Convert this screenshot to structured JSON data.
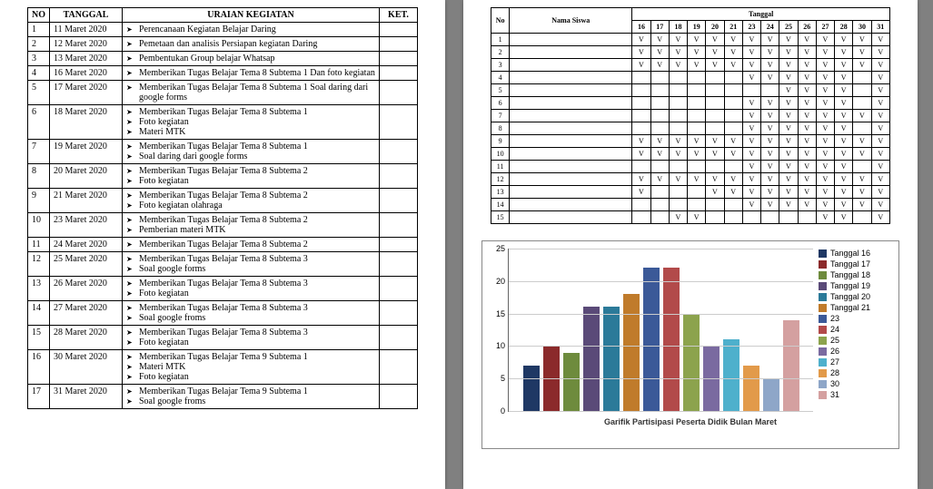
{
  "left_table": {
    "headers": {
      "no": "NO",
      "tanggal": "TANGGAL",
      "uraian": "URAIAN KEGIATAN",
      "ket": "KET."
    },
    "rows": [
      {
        "no": "1",
        "tanggal": "11 Maret 2020",
        "items": [
          "Perencanaan Kegiatan Belajar Daring"
        ]
      },
      {
        "no": "2",
        "tanggal": "12 Maret 2020",
        "items": [
          "Pemetaan dan analisis Persiapan kegiatan Daring"
        ]
      },
      {
        "no": "3",
        "tanggal": "13 Maret 2020",
        "items": [
          "Pembentukan Group belajar Whatsap"
        ]
      },
      {
        "no": "4",
        "tanggal": "16 Maret 2020",
        "items": [
          "Memberikan Tugas Belajar Tema 8 Subtema 1 Dan foto kegiatan"
        ]
      },
      {
        "no": "5",
        "tanggal": "17 Maret 2020",
        "items": [
          "Memberikan Tugas Belajar Tema 8 Subtema 1 Soal daring dari google forms"
        ]
      },
      {
        "no": "6",
        "tanggal": "18 Maret 2020",
        "items": [
          "Memberikan Tugas Belajar Tema 8 Subtema 1",
          "Foto kegiatan",
          "Materi MTK"
        ]
      },
      {
        "no": "7",
        "tanggal": "19 Maret 2020",
        "items": [
          "Memberikan Tugas Belajar Tema 8 Subtema 1",
          "Soal daring dari google forms"
        ]
      },
      {
        "no": "8",
        "tanggal": "20 Maret 2020",
        "items": [
          "Memberikan Tugas Belajar Tema 8 Subtema 2",
          "Foto kegiatan"
        ]
      },
      {
        "no": "9",
        "tanggal": "21 Maret 2020",
        "items": [
          "Memberikan Tugas Belajar Tema 8 Subtema 2",
          "Foto kegiatan olahraga"
        ]
      },
      {
        "no": "10",
        "tanggal": "23 Maret 2020",
        "items": [
          "Memberikan Tugas Belajar Tema 8 Subtema 2",
          "Pemberian materi MTK"
        ]
      },
      {
        "no": "11",
        "tanggal": "24 Maret 2020",
        "items": [
          "Memberikan Tugas Belajar Tema 8 Subtema 2"
        ]
      },
      {
        "no": "12",
        "tanggal": "25 Maret 2020",
        "items": [
          "Memberikan Tugas Belajar Tema 8 Subtema 3",
          "Soal google forms"
        ]
      },
      {
        "no": "13",
        "tanggal": "26 Maret 2020",
        "items": [
          "Memberikan Tugas Belajar Tema 8 Subtema 3",
          "Foto kegiatan"
        ]
      },
      {
        "no": "14",
        "tanggal": "27 Maret 2020",
        "items": [
          "Memberikan Tugas Belajar Tema 8 Subtema 3",
          "Soal google froms"
        ]
      },
      {
        "no": "15",
        "tanggal": "28 Maret 2020",
        "items": [
          "Memberikan Tugas Belajar Tema 8 Subtema 3",
          "Foto kegiatan"
        ]
      },
      {
        "no": "16",
        "tanggal": "30 Maret 2020",
        "items": [
          "Memberikan Tugas Belajar Tema 9 Subtema 1",
          "Materi MTK",
          "Foto kegiatan"
        ]
      },
      {
        "no": "17",
        "tanggal": "31 Maret 2020",
        "items": [
          "Memberikan Tugas Belajar Tema 9 Subtema 1",
          "Soal google froms"
        ]
      }
    ]
  },
  "attendance": {
    "headers": {
      "no": "No",
      "nama": "Nama Siswa",
      "tanggal": "Tanggal"
    },
    "dates": [
      "16",
      "17",
      "18",
      "19",
      "20",
      "21",
      "23",
      "24",
      "25",
      "26",
      "27",
      "28",
      "30",
      "31"
    ],
    "rows": [
      {
        "no": "1",
        "marks": [
          "V",
          "V",
          "V",
          "V",
          "V",
          "V",
          "V",
          "V",
          "V",
          "V",
          "V",
          "V",
          "V",
          "V"
        ]
      },
      {
        "no": "2",
        "marks": [
          "V",
          "V",
          "V",
          "V",
          "V",
          "V",
          "V",
          "V",
          "V",
          "V",
          "V",
          "V",
          "V",
          "V"
        ]
      },
      {
        "no": "3",
        "marks": [
          "V",
          "V",
          "V",
          "V",
          "V",
          "V",
          "V",
          "V",
          "V",
          "V",
          "V",
          "V",
          "V",
          "V"
        ]
      },
      {
        "no": "4",
        "marks": [
          "",
          "",
          "",
          "",
          "",
          "",
          "V",
          "V",
          "V",
          "V",
          "V",
          "V",
          "",
          "V"
        ]
      },
      {
        "no": "5",
        "marks": [
          "",
          "",
          "",
          "",
          "",
          "",
          "",
          "",
          "V",
          "V",
          "V",
          "V",
          "",
          "V"
        ]
      },
      {
        "no": "6",
        "marks": [
          "",
          "",
          "",
          "",
          "",
          "",
          "V",
          "V",
          "V",
          "V",
          "V",
          "V",
          "",
          "V"
        ]
      },
      {
        "no": "7",
        "marks": [
          "",
          "",
          "",
          "",
          "",
          "",
          "V",
          "V",
          "V",
          "V",
          "V",
          "V",
          "V",
          "V"
        ]
      },
      {
        "no": "8",
        "marks": [
          "",
          "",
          "",
          "",
          "",
          "",
          "V",
          "V",
          "V",
          "V",
          "V",
          "V",
          "",
          "V"
        ]
      },
      {
        "no": "9",
        "marks": [
          "V",
          "V",
          "V",
          "V",
          "V",
          "V",
          "V",
          "V",
          "V",
          "V",
          "V",
          "V",
          "V",
          "V"
        ]
      },
      {
        "no": "10",
        "marks": [
          "V",
          "V",
          "V",
          "V",
          "V",
          "V",
          "V",
          "V",
          "V",
          "V",
          "V",
          "V",
          "V",
          "V"
        ]
      },
      {
        "no": "11",
        "marks": [
          "",
          "",
          "",
          "",
          "",
          "",
          "V",
          "V",
          "V",
          "V",
          "V",
          "V",
          "",
          "V"
        ]
      },
      {
        "no": "12",
        "marks": [
          "V",
          "V",
          "V",
          "V",
          "V",
          "V",
          "V",
          "V",
          "V",
          "V",
          "V",
          "V",
          "V",
          "V"
        ]
      },
      {
        "no": "13",
        "marks": [
          "V",
          "",
          "",
          "",
          "V",
          "V",
          "V",
          "V",
          "V",
          "V",
          "V",
          "V",
          "V",
          "V"
        ]
      },
      {
        "no": "14",
        "marks": [
          "",
          "",
          "",
          "",
          "",
          "",
          "V",
          "V",
          "V",
          "V",
          "V",
          "V",
          "V",
          "V"
        ]
      },
      {
        "no": "15",
        "marks": [
          "",
          "",
          "V",
          "V",
          "",
          "",
          "",
          "",
          "",
          "",
          "V",
          "V",
          "",
          "V"
        ]
      }
    ]
  },
  "chart": {
    "type": "bar",
    "title": "Garifik Partisipasi Peserta Didik Bulan Maret",
    "ylim": [
      0,
      25
    ],
    "ytick_step": 5,
    "grid_color": "#cccccc",
    "axis_color": "#666666",
    "background_color": "#ffffff",
    "series": [
      {
        "label": "Tanggal 16",
        "value": 7,
        "color": "#1f3864"
      },
      {
        "label": "Tanggal 17",
        "value": 10,
        "color": "#8b2a2b"
      },
      {
        "label": "Tanggal 18",
        "value": 9,
        "color": "#6e8b3d"
      },
      {
        "label": "Tanggal 19",
        "value": 16,
        "color": "#5a4a78"
      },
      {
        "label": "Tanggal 20",
        "value": 16,
        "color": "#2b7a99"
      },
      {
        "label": "Tanggal 21",
        "value": 18,
        "color": "#c07b2b"
      },
      {
        "label": "23",
        "value": 22,
        "color": "#3b5998"
      },
      {
        "label": "24",
        "value": 22,
        "color": "#b24a4a"
      },
      {
        "label": "25",
        "value": 15,
        "color": "#8ca34d"
      },
      {
        "label": "26",
        "value": 10,
        "color": "#7a6aa0"
      },
      {
        "label": "27",
        "value": 11,
        "color": "#4eb0cc"
      },
      {
        "label": "28",
        "value": 7,
        "color": "#e29a4a"
      },
      {
        "label": "30",
        "value": 5,
        "color": "#8ea6c8"
      },
      {
        "label": "31",
        "value": 14,
        "color": "#d4a0a0"
      }
    ]
  }
}
